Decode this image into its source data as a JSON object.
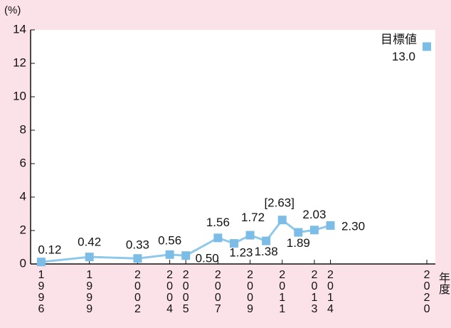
{
  "chart_data": {
    "type": "line",
    "y_label": "(%)",
    "x_label": "年度",
    "x": [
      1996,
      1999,
      2002,
      2004,
      2005,
      2007,
      2008,
      2009,
      2010,
      2011,
      2012,
      2013,
      2014
    ],
    "series": [
      {
        "color": "#8ec8ea",
        "values": [
          0.12,
          0.42,
          0.33,
          0.56,
          0.5,
          1.56,
          1.23,
          1.72,
          1.38,
          2.63,
          1.89,
          2.03,
          2.3
        ],
        "value_labels": [
          "0.12",
          "0.42",
          "0.33",
          "0.56",
          "0.50",
          "1.56",
          "1.23",
          "1.72",
          "1.38",
          "[2.63]",
          "1.89",
          "2.03",
          "2.30"
        ]
      },
      {
        "name": "目標値",
        "color": "#8ec8ea",
        "x": [
          2020
        ],
        "values": [
          13.0
        ],
        "value_labels": [
          "13.0"
        ]
      }
    ],
    "xlim": [
      1995.34,
      2020.53
    ],
    "xticks": [
      1996,
      1999,
      2002,
      2004,
      2005,
      2007,
      2009,
      2011,
      2013,
      2014,
      2020
    ],
    "ylim": [
      0,
      14
    ],
    "yticks": [
      0,
      2,
      4,
      6,
      8,
      10,
      12,
      14
    ]
  }
}
